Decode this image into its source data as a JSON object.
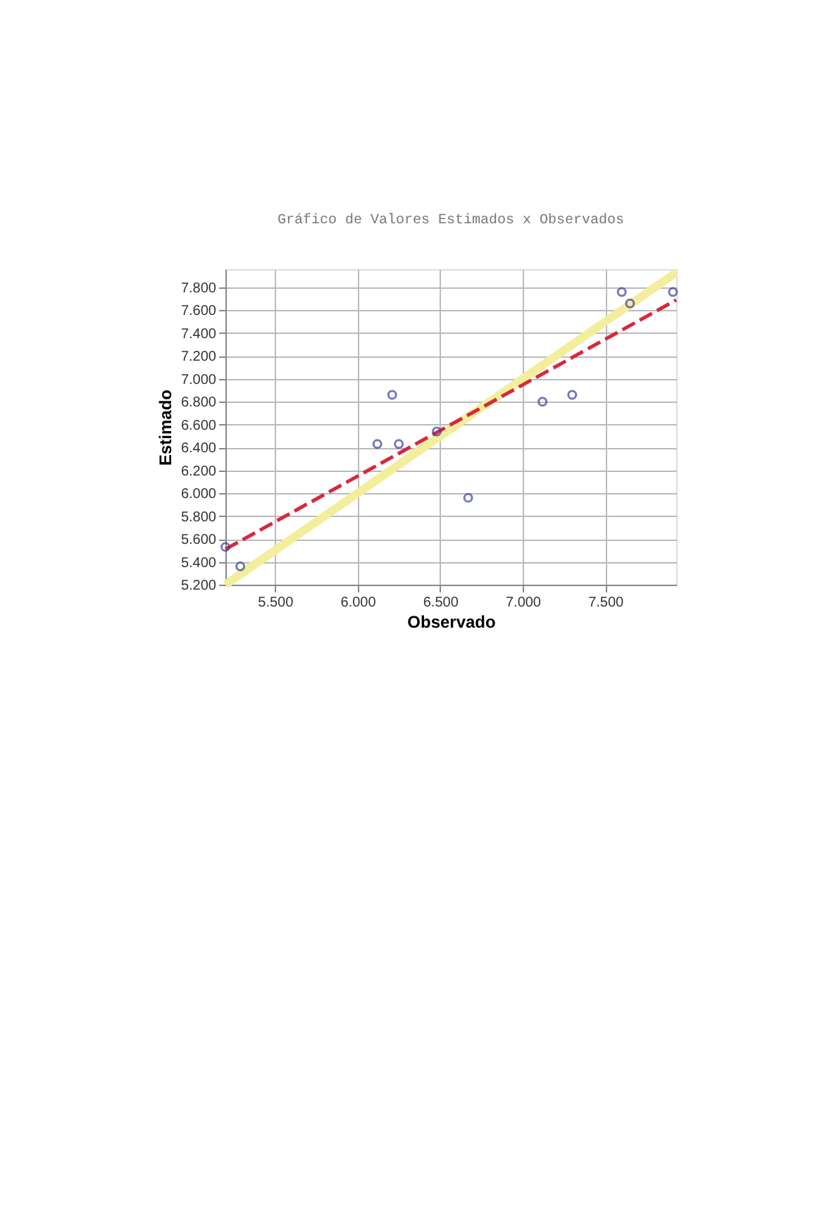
{
  "chart_data": {
    "type": "scatter",
    "title": "Gráfico de Valores Estimados x Observados",
    "xlabel": "Observado",
    "ylabel": "Estimado",
    "xlim": [
      5200,
      7930
    ],
    "ylim": [
      5200,
      7960
    ],
    "xticks": [
      {
        "value": 5500,
        "label": "5.500"
      },
      {
        "value": 6000,
        "label": "6.000"
      },
      {
        "value": 6500,
        "label": "6.500"
      },
      {
        "value": 7000,
        "label": "7.000"
      },
      {
        "value": 7500,
        "label": "7.500"
      }
    ],
    "yticks": [
      {
        "value": 5200,
        "label": "5.200"
      },
      {
        "value": 5400,
        "label": "5.400"
      },
      {
        "value": 5600,
        "label": "5.600"
      },
      {
        "value": 5800,
        "label": "5.800"
      },
      {
        "value": 6000,
        "label": "6.000"
      },
      {
        "value": 6200,
        "label": "6.200"
      },
      {
        "value": 6400,
        "label": "6.400"
      },
      {
        "value": 6600,
        "label": "6.600"
      },
      {
        "value": 6800,
        "label": "6.800"
      },
      {
        "value": 7000,
        "label": "7.000"
      },
      {
        "value": 7200,
        "label": "7.200"
      },
      {
        "value": 7400,
        "label": "7.400"
      },
      {
        "value": 7600,
        "label": "7.600"
      },
      {
        "value": 7800,
        "label": "7.800"
      }
    ],
    "grid": true,
    "series": [
      {
        "type": "line",
        "color": "#f3ee9c",
        "x": [
          5200,
          7930
        ],
        "values": [
          5200,
          7930
        ],
        "line_style": "solid"
      },
      {
        "type": "line",
        "color": "#d8283c",
        "x": [
          5200,
          7930
        ],
        "values": [
          5510,
          7690
        ],
        "line_style": "dashed"
      },
      {
        "color": "#3b3f9e",
        "marker": "circle",
        "x": [
          5200,
          5290,
          6120,
          6210,
          6250,
          6480,
          6670,
          7120,
          7300,
          7600,
          7650,
          7910
        ],
        "values": [
          5530,
          5360,
          6430,
          6860,
          6430,
          6540,
          5960,
          6800,
          6860,
          7760,
          7660,
          7760
        ]
      }
    ]
  }
}
